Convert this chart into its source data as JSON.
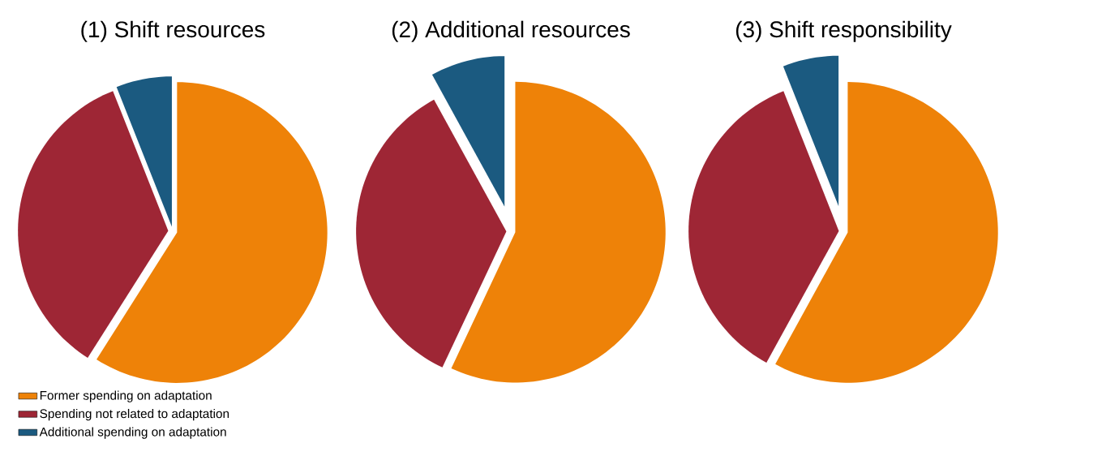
{
  "chart_data": [
    {
      "type": "pie",
      "title": "(1) Shift resources",
      "categories": [
        "Former spending on adaptation",
        "Spending not related to adaptation",
        "Additional spending on adaptation"
      ],
      "values": [
        59,
        35,
        6
      ],
      "colors": [
        "#ee8208",
        "#9e2635",
        "#1b5a80"
      ],
      "legend": "bottom left"
    },
    {
      "type": "pie",
      "title": "(2) Additional resources",
      "categories": [
        null,
        null,
        null
      ],
      "values": [
        57,
        35,
        8
      ],
      "colors": [
        "#ee8208",
        "#9e2635",
        "#1b5a80"
      ]
    },
    {
      "type": "pie",
      "title": "(3) Shift responsibility",
      "categories": [
        null,
        null,
        null
      ],
      "values": [
        58,
        36,
        6
      ],
      "colors": [
        "#ee8208",
        "#9e2635",
        "#1b5a80"
      ]
    }
  ]
}
